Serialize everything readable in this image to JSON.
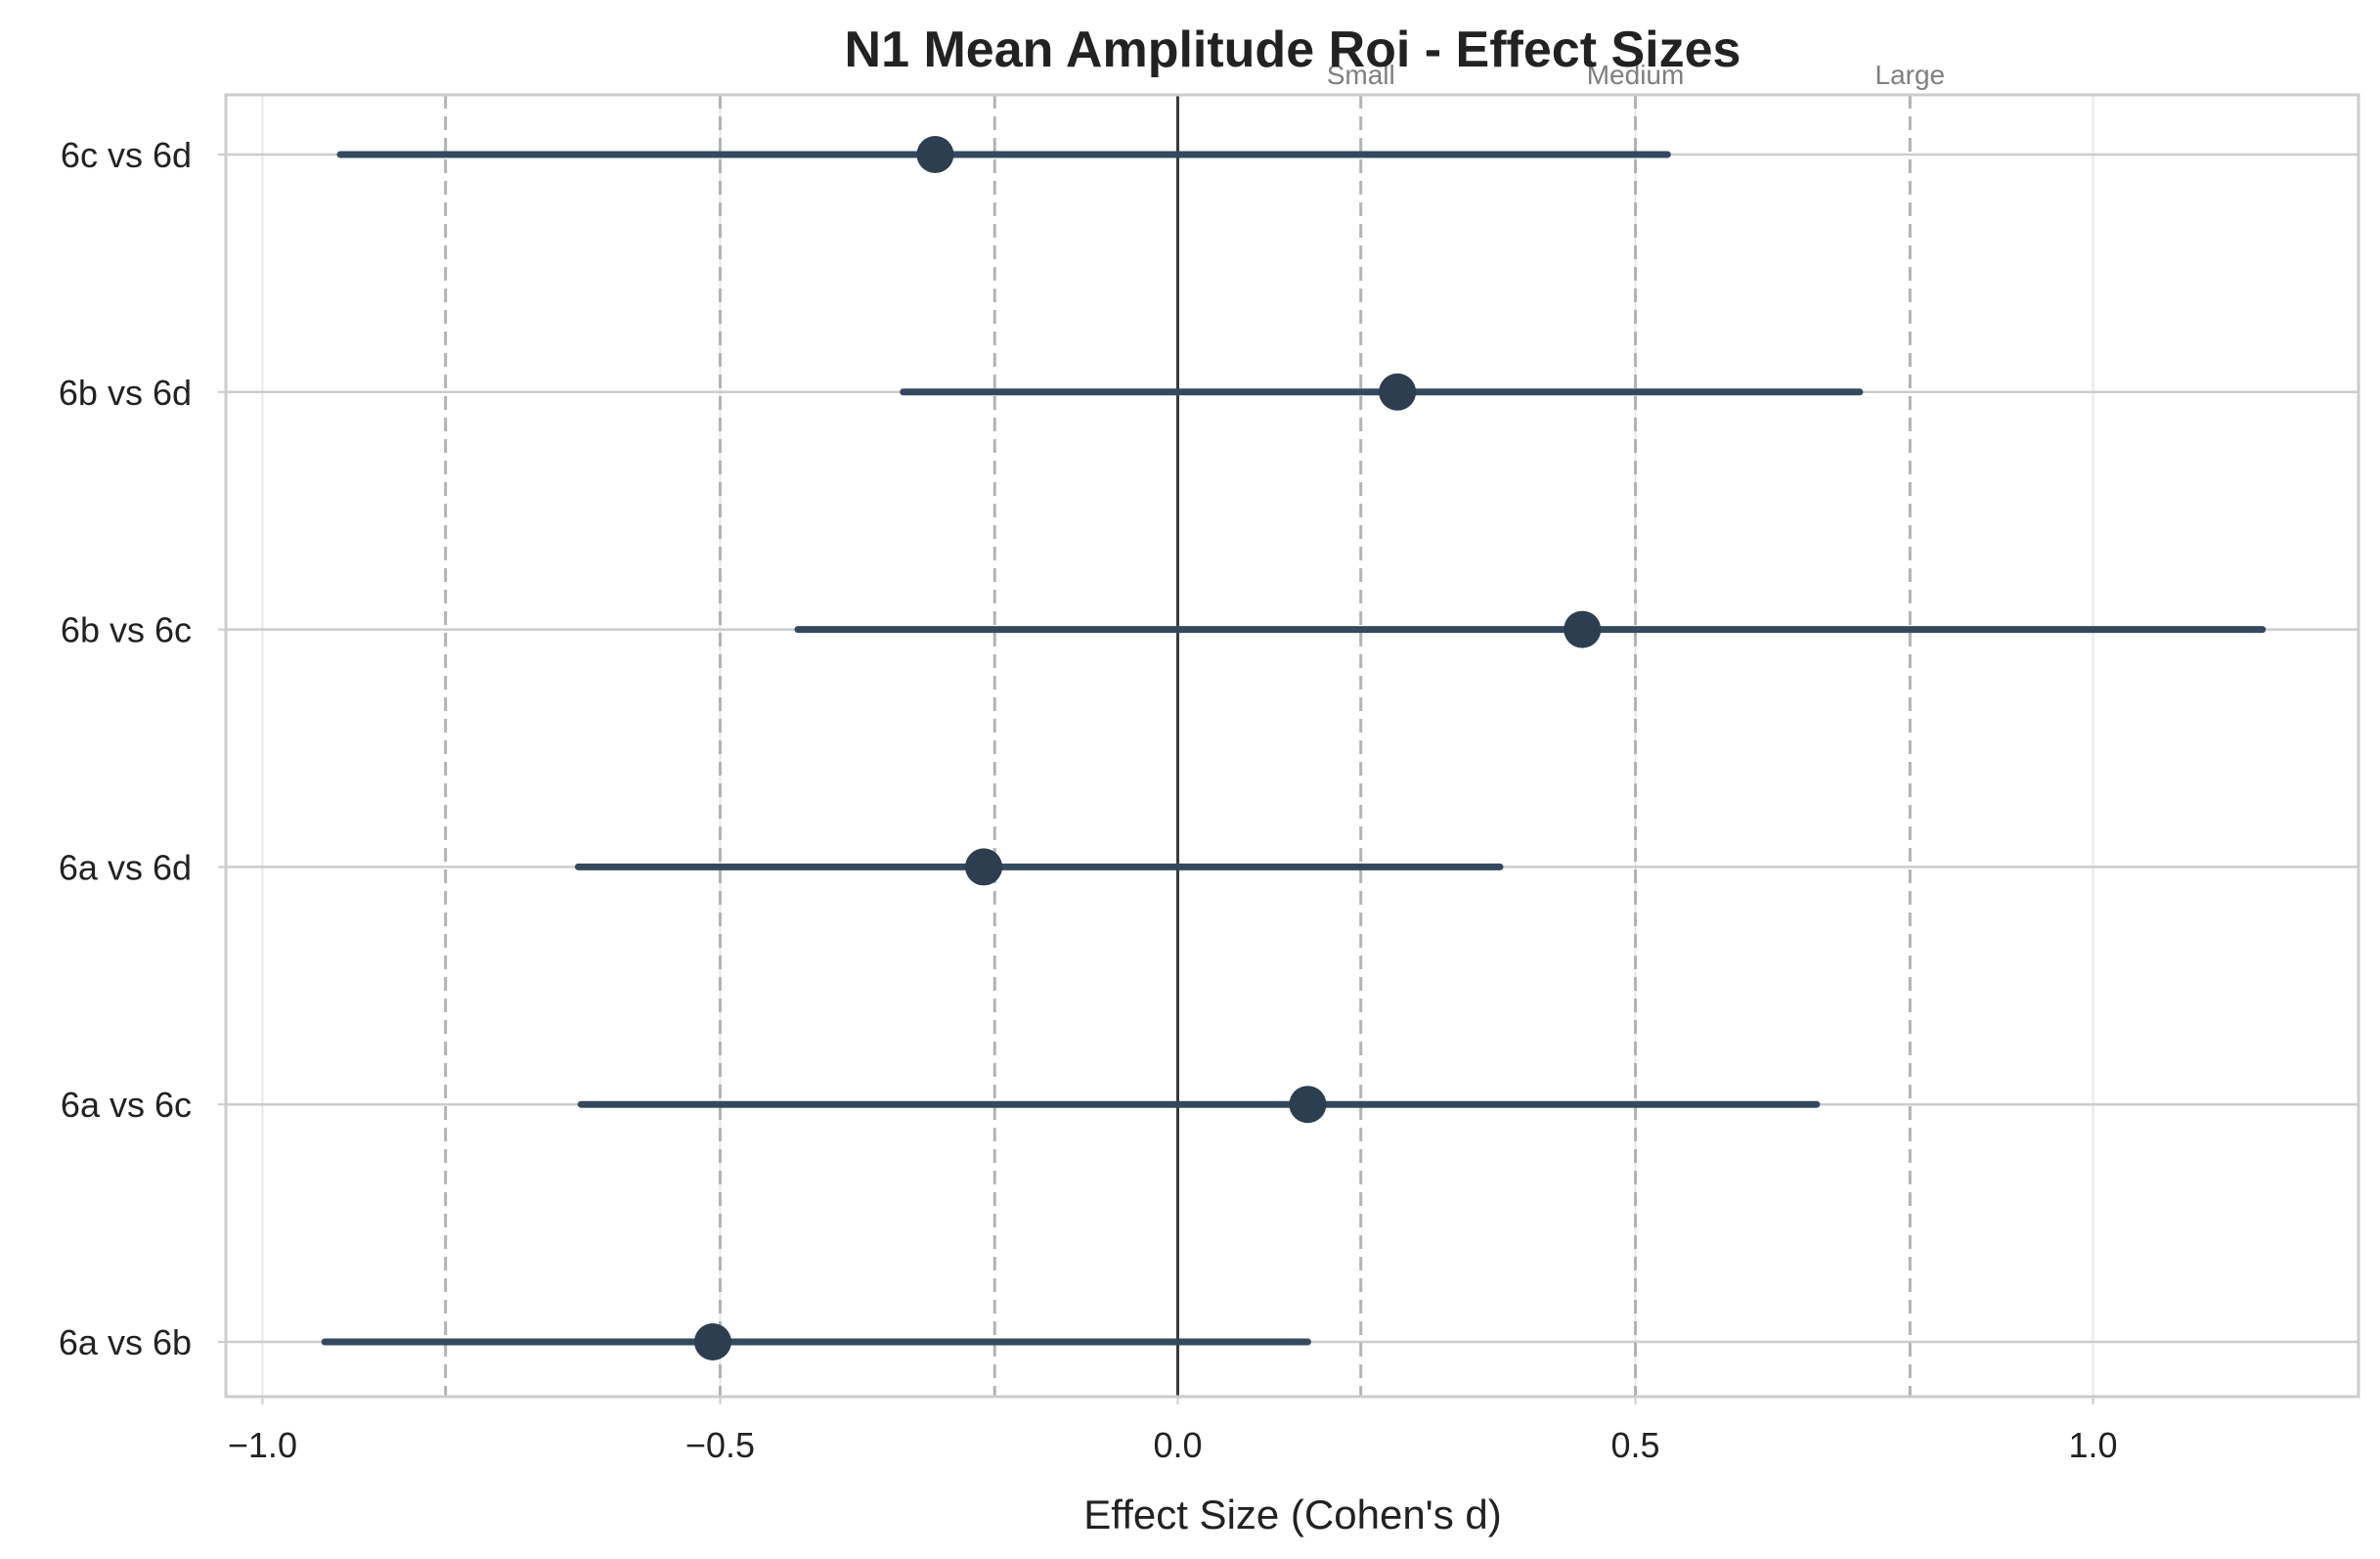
{
  "chart_data": {
    "type": "forest",
    "title": "N1 Mean Amplitude Roi - Effect Sizes",
    "xlabel": "Effect Size (Cohen's d)",
    "ylabel": "",
    "xlim": [
      -1.04,
      1.29
    ],
    "xticks": [
      -1.0,
      -0.5,
      0.0,
      0.5,
      1.0
    ],
    "xtick_labels": [
      "−1.0",
      "−0.5",
      "0.0",
      "0.5",
      "1.0"
    ],
    "grid": true,
    "reference_lines": [
      {
        "value": -0.8,
        "label": ""
      },
      {
        "value": -0.5,
        "label": ""
      },
      {
        "value": -0.2,
        "label": ""
      },
      {
        "value": 0.2,
        "label": "Small"
      },
      {
        "value": 0.5,
        "label": "Medium"
      },
      {
        "value": 0.8,
        "label": "Large"
      }
    ],
    "zero_line": 0.0,
    "comparisons": [
      {
        "label": "6c vs 6d",
        "estimate": -0.265,
        "ci_low": -0.915,
        "ci_high": 0.535
      },
      {
        "label": "6b vs 6d",
        "estimate": 0.24,
        "ci_low": -0.3,
        "ci_high": 0.745
      },
      {
        "label": "6b vs 6c",
        "estimate": 0.442,
        "ci_low": -0.415,
        "ci_high": 1.185
      },
      {
        "label": "6a vs 6d",
        "estimate": -0.212,
        "ci_low": -0.655,
        "ci_high": 0.352
      },
      {
        "label": "6a vs 6c",
        "estimate": 0.142,
        "ci_low": -0.652,
        "ci_high": 0.698
      },
      {
        "label": "6a vs 6b",
        "estimate": -0.508,
        "ci_low": -0.932,
        "ci_high": 0.142
      }
    ],
    "colors": {
      "marker": "#2c3e50",
      "errorbar": "#34495e",
      "grid": "#cccccc",
      "reference": "#b3b3b3",
      "zero": "#3a3a3a",
      "frame": "#cccccc"
    }
  }
}
